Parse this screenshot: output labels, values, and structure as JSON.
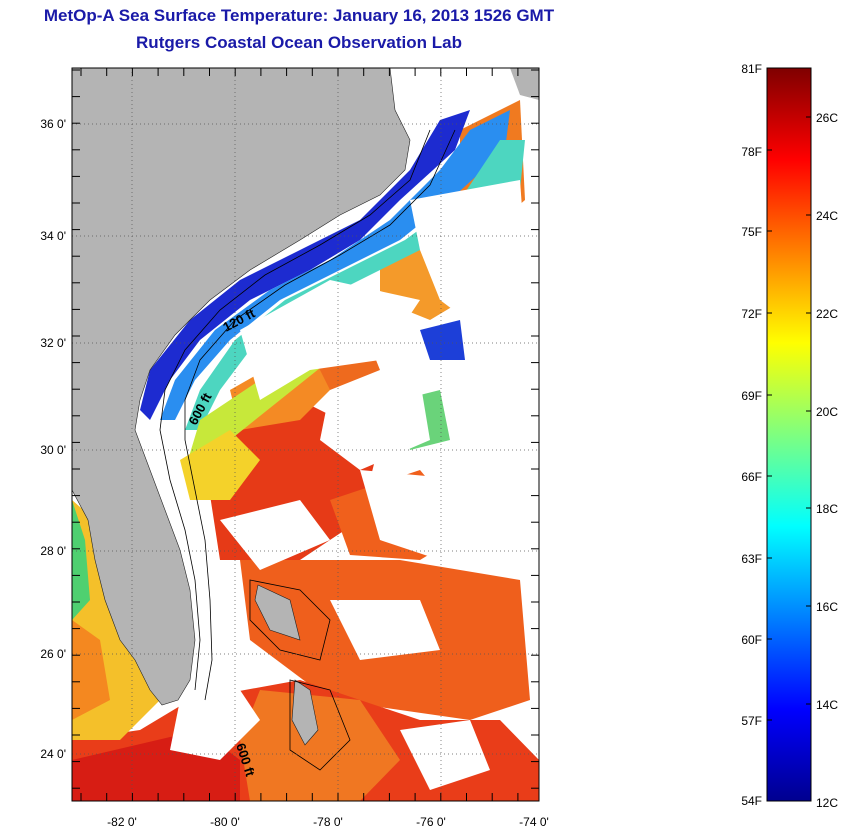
{
  "title": "MetOp-A Sea Surface Temperature:  January 16, 2013 1526 GMT",
  "subtitle": "Rutgers Coastal Ocean Observation Lab",
  "map": {
    "lat_labels": [
      "36 0'",
      "34 0'",
      "32 0'",
      "30 0'",
      "28 0'",
      "26 0'",
      "24 0'"
    ],
    "lon_labels": [
      "-82 0'",
      "-80 0'",
      "-78 0'",
      "-76 0'",
      "-74 0'"
    ],
    "contour_labels": [
      "120 ft",
      "600 ft",
      "600 ft"
    ],
    "land_color": "#b4b4b4"
  },
  "colorbar": {
    "fahrenheit_labels": [
      "81F",
      "78F",
      "75F",
      "72F",
      "69F",
      "66F",
      "63F",
      "60F",
      "57F",
      "54F"
    ],
    "celsius_labels": [
      "26C",
      "24C",
      "22C",
      "20C",
      "18C",
      "16C",
      "14C",
      "12C"
    ],
    "colormap": "jet"
  }
}
